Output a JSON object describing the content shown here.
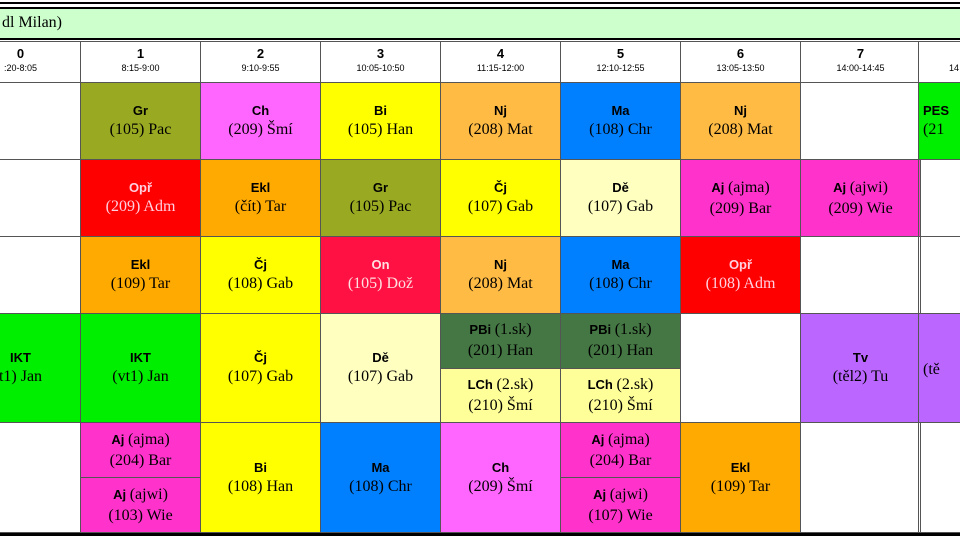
{
  "header": {
    "title": "dl Milan)"
  },
  "periods": [
    {
      "number": "0",
      "time": ":20-8:05"
    },
    {
      "number": "1",
      "time": "8:15-9:00"
    },
    {
      "number": "2",
      "time": "9:10-9:55"
    },
    {
      "number": "3",
      "time": "10:05-10:50"
    },
    {
      "number": "4",
      "time": "11:15-12:00"
    },
    {
      "number": "5",
      "time": "12:10-12:55"
    },
    {
      "number": "6",
      "time": "13:05-13:50"
    },
    {
      "number": "7",
      "time": "14:00-14:45"
    },
    {
      "time": "14"
    }
  ],
  "rows": [
    [
      null,
      {
        "color": "#99aa22",
        "parts": [
          {
            "subject": "Gr",
            "room": "(105) Pac"
          }
        ]
      },
      {
        "color": "#ff66ff",
        "parts": [
          {
            "subject": "Ch",
            "room": "(209) Šmí"
          }
        ]
      },
      {
        "color": "#ffff00",
        "parts": [
          {
            "subject": "Bi",
            "room": "(105) Han"
          }
        ]
      },
      {
        "color": "#ffbb44",
        "parts": [
          {
            "subject": "Nj",
            "room": "(208) Mat"
          }
        ]
      },
      {
        "color": "#0080ff",
        "parts": [
          {
            "subject": "Ma",
            "room": "(108) Chr"
          }
        ]
      },
      {
        "color": "#ffbb44",
        "parts": [
          {
            "subject": "Nj",
            "room": "(208) Mat"
          }
        ]
      },
      null,
      {
        "color": "#00ee00",
        "parts": [
          {
            "subject": "PES",
            "room": "(21"
          }
        ]
      }
    ],
    [
      null,
      {
        "color": "#ff0000",
        "text_color": "#ffd0e0",
        "parts": [
          {
            "subject": "Opř",
            "room": "(209) Adm"
          }
        ]
      },
      {
        "color": "#ffaa00",
        "parts": [
          {
            "subject": "Ekl",
            "room": "(čít) Tar"
          }
        ]
      },
      {
        "color": "#99aa22",
        "parts": [
          {
            "subject": "Gr",
            "room": "(105) Pac"
          }
        ]
      },
      {
        "color": "#ffff00",
        "parts": [
          {
            "subject": "Čj",
            "room": "(107) Gab"
          }
        ]
      },
      {
        "color": "#ffffc0",
        "parts": [
          {
            "subject": "Dě",
            "room": "(107) Gab"
          }
        ]
      },
      {
        "color": "#ff33cc",
        "parts": [
          {
            "subject": "Aj",
            "group": "(ajma)",
            "room": "(209) Bar"
          }
        ]
      },
      {
        "color": "#ff33cc",
        "parts": [
          {
            "subject": "Aj",
            "group": "(ajwi)",
            "room": "(209) Wie"
          }
        ]
      },
      null
    ],
    [
      null,
      {
        "color": "#ffaa00",
        "parts": [
          {
            "subject": "Ekl",
            "room": "(109) Tar"
          }
        ]
      },
      {
        "color": "#ffff00",
        "parts": [
          {
            "subject": "Čj",
            "room": "(108) Gab"
          }
        ]
      },
      {
        "color": "#ff1144",
        "text_color": "#ffe0e0",
        "parts": [
          {
            "subject": "On",
            "room": "(105) Dož"
          }
        ]
      },
      {
        "color": "#ffbb44",
        "parts": [
          {
            "subject": "Nj",
            "room": "(208) Mat"
          }
        ]
      },
      {
        "color": "#0080ff",
        "parts": [
          {
            "subject": "Ma",
            "room": "(108) Chr"
          }
        ]
      },
      {
        "color": "#ff0000",
        "text_color": "#ffd0e0",
        "parts": [
          {
            "subject": "Opř",
            "room": "(108) Adm"
          }
        ]
      },
      null,
      null
    ],
    [
      {
        "color": "#00ee00",
        "parts": [
          {
            "subject": "IKT",
            "room": "t1) Jan"
          }
        ]
      },
      {
        "color": "#00ee00",
        "parts": [
          {
            "subject": "IKT",
            "room": "(vt1) Jan"
          }
        ]
      },
      {
        "color": "#ffff00",
        "parts": [
          {
            "subject": "Čj",
            "room": "(107) Gab"
          }
        ]
      },
      {
        "color": "#ffffc0",
        "parts": [
          {
            "subject": "Dě",
            "room": "(107) Gab"
          }
        ]
      },
      {
        "parts": [
          {
            "subject": "PBi",
            "group": "(1.sk)",
            "room": "(201) Han",
            "color": "#447744"
          },
          {
            "subject": "LCh",
            "group": "(2.sk)",
            "room": "(210) Šmí",
            "color": "#ffff99"
          }
        ]
      },
      {
        "parts": [
          {
            "subject": "PBi",
            "group": "(1.sk)",
            "room": "(201) Han",
            "color": "#447744"
          },
          {
            "subject": "LCh",
            "group": "(2.sk)",
            "room": "(210) Šmí",
            "color": "#ffff99"
          }
        ]
      },
      null,
      {
        "color": "#bb66ff",
        "parts": [
          {
            "subject": "Tv",
            "room": "(těl2) Tu"
          }
        ]
      },
      {
        "color": "#bb66ff",
        "parts": [
          {
            "room": "(tě"
          }
        ]
      }
    ],
    [
      null,
      {
        "parts": [
          {
            "subject": "Aj",
            "group": "(ajma)",
            "room": "(204) Bar",
            "color": "#ff33cc"
          },
          {
            "subject": "Aj",
            "group": "(ajwi)",
            "room": "(103) Wie",
            "color": "#ff33cc"
          }
        ]
      },
      {
        "color": "#ffff00",
        "parts": [
          {
            "subject": "Bi",
            "room": "(108) Han"
          }
        ]
      },
      {
        "color": "#0080ff",
        "parts": [
          {
            "subject": "Ma",
            "room": "(108) Chr"
          }
        ]
      },
      {
        "color": "#ff66ff",
        "parts": [
          {
            "subject": "Ch",
            "room": "(209) Šmí"
          }
        ]
      },
      {
        "parts": [
          {
            "subject": "Aj",
            "group": "(ajma)",
            "room": "(204) Bar",
            "color": "#ff33cc"
          },
          {
            "subject": "Aj",
            "group": "(ajwi)",
            "room": "(107) Wie",
            "color": "#ff33cc"
          }
        ]
      },
      {
        "color": "#ffaa00",
        "parts": [
          {
            "subject": "Ekl",
            "room": "(109) Tar"
          }
        ]
      },
      null,
      null
    ]
  ]
}
